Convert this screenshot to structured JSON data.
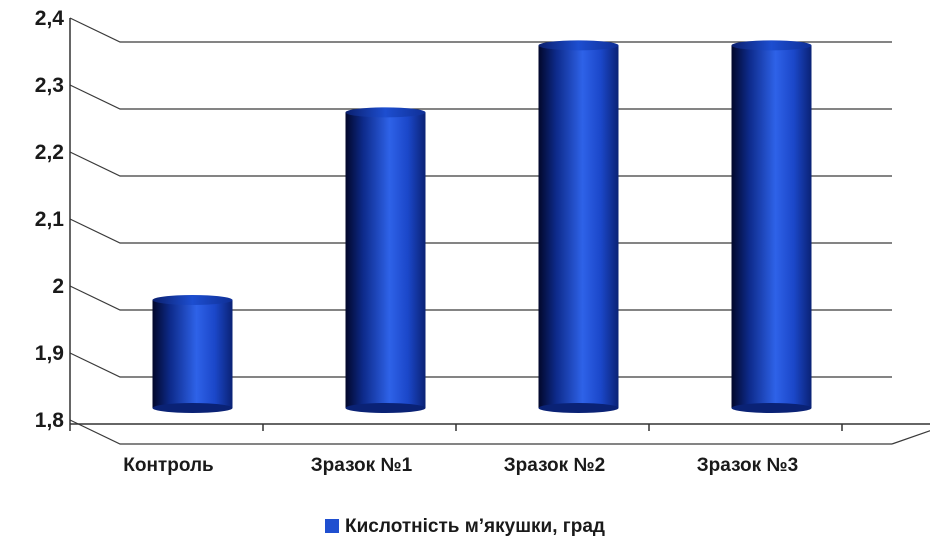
{
  "chart_data": {
    "type": "bar",
    "categories": [
      "Контроль",
      "Зразок №1",
      "Зразок №2",
      "Зразок №3"
    ],
    "series": [
      {
        "name": "Кислотність м’якушки, град",
        "values": [
          2.0,
          2.28,
          2.38,
          2.38
        ]
      }
    ],
    "y_ticks": [
      "1,8",
      "1,9",
      "2",
      "2,1",
      "2,2",
      "2,3",
      "2,4"
    ],
    "ylim": [
      1.8,
      2.4
    ],
    "grid": true,
    "legend_position": "bottom",
    "bar_style": "3d-cylinder",
    "colors": {
      "bar_light": "#2e62e8",
      "bar_mid": "#1640b8",
      "bar_dark": "#02072a",
      "grid": "#3a3a3a"
    }
  }
}
